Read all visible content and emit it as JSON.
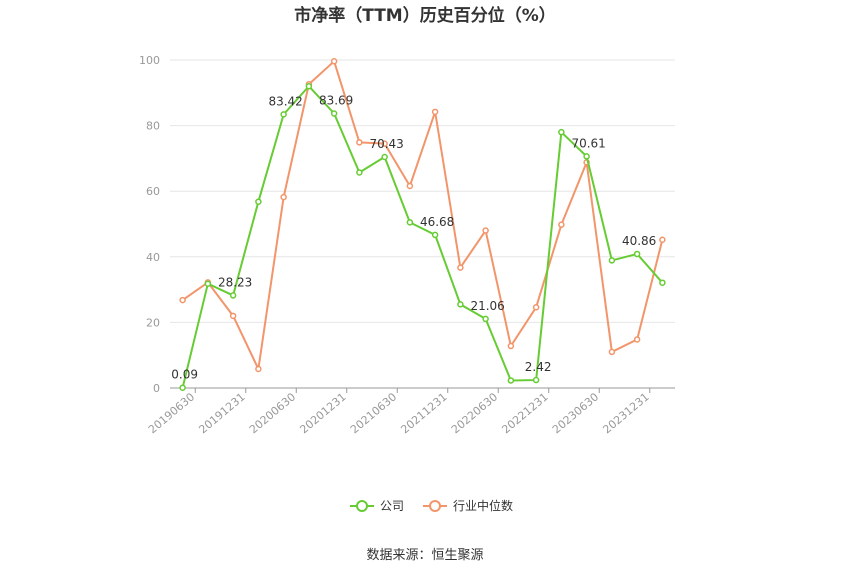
{
  "chart_data": {
    "type": "line",
    "title": "市净率（TTM）历史百分位（%）",
    "ylim": [
      0,
      100
    ],
    "yticks": [
      0,
      20,
      40,
      60,
      80,
      100
    ],
    "x_tick_labels": [
      "20190630",
      "20191231",
      "20200630",
      "20201231",
      "20210630",
      "20211231",
      "20220630",
      "20221231",
      "20230630",
      "20231231"
    ],
    "grid": true,
    "legend_position": "bottom-center",
    "series": [
      {
        "name": "公司",
        "color": "#66cc33",
        "values": [
          0.09,
          31.8,
          28.23,
          56.8,
          83.42,
          92.0,
          83.69,
          65.7,
          70.43,
          50.5,
          46.68,
          25.5,
          21.06,
          2.3,
          2.42,
          78.0,
          70.61,
          38.9,
          40.86,
          32.1
        ],
        "labels": [
          {
            "index": 0,
            "text": "0.09"
          },
          {
            "index": 2,
            "text": "28.23"
          },
          {
            "index": 4,
            "text": "83.42"
          },
          {
            "index": 6,
            "text": "83.69"
          },
          {
            "index": 8,
            "text": "70.43"
          },
          {
            "index": 10,
            "text": "46.68"
          },
          {
            "index": 12,
            "text": "21.06"
          },
          {
            "index": 14,
            "text": "2.42"
          },
          {
            "index": 16,
            "text": "70.61"
          },
          {
            "index": 18,
            "text": "40.86"
          }
        ]
      },
      {
        "name": "行业中位数",
        "color": "#f2956a",
        "values": [
          26.8,
          32.2,
          22.0,
          5.8,
          58.2,
          92.6,
          99.6,
          74.9,
          74.5,
          61.6,
          84.2,
          36.7,
          48.0,
          12.8,
          24.6,
          49.8,
          68.8,
          11.0,
          14.8,
          45.2
        ]
      }
    ]
  },
  "source_text": "数据来源：恒生聚源"
}
